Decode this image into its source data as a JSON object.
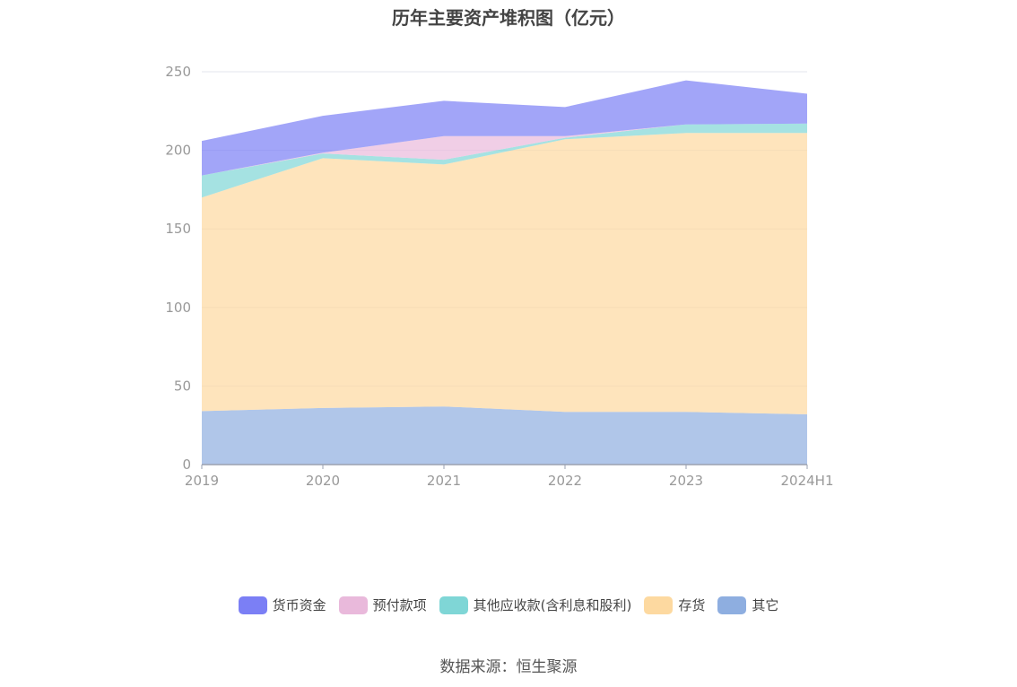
{
  "title": "历年主要资产堆积图（亿元）",
  "source": "数据来源：恒生聚源",
  "chart_data": {
    "type": "area",
    "stacked": true,
    "categories": [
      "2019",
      "2020",
      "2021",
      "2022",
      "2023",
      "2024H1"
    ],
    "y_ticks": [
      "0",
      "50",
      "100",
      "150",
      "200",
      "250"
    ],
    "ylim": [
      0,
      250
    ],
    "grid": true,
    "legend_position": "bottom",
    "series": [
      {
        "name": "其它",
        "color": "#8eaee0",
        "values": [
          34,
          36,
          37,
          33.5,
          33.5,
          32
        ]
      },
      {
        "name": "存货",
        "color": "#fdd9a0",
        "values": [
          136,
          159,
          154,
          173.5,
          177.5,
          179
        ]
      },
      {
        "name": "其他应收款(含利息和股利)",
        "color": "#7fd6d6",
        "values": [
          14,
          3,
          3,
          1,
          5.5,
          6
        ]
      },
      {
        "name": "预付款项",
        "color": "#e9b9db",
        "values": [
          0,
          0.5,
          15,
          1,
          0,
          0
        ]
      },
      {
        "name": "货币资金",
        "color": "#7b7ff5",
        "values": [
          22,
          23.5,
          22.5,
          18.5,
          28,
          19
        ]
      }
    ],
    "legend_order": [
      "货币资金",
      "预付款项",
      "其他应收款(含利息和股利)",
      "存货",
      "其它"
    ]
  }
}
